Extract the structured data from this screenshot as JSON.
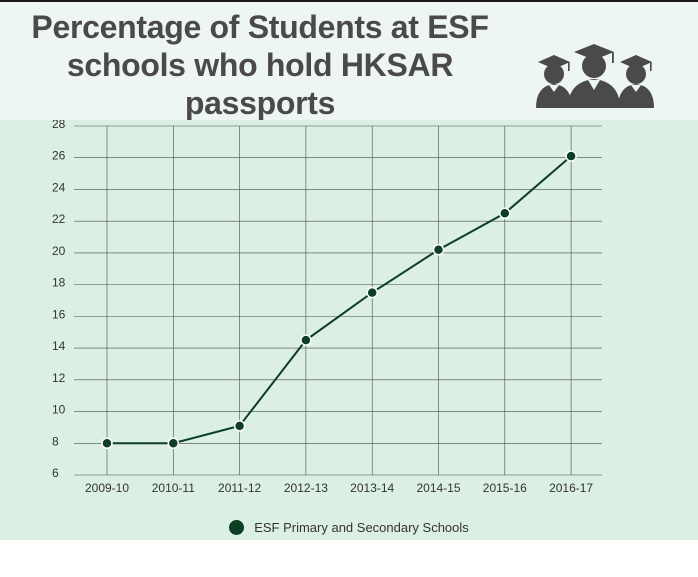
{
  "title": "Percentage of Students at ESF schools who hold HKSAR passports",
  "icons": {
    "graduates": "graduates-group-icon"
  },
  "colors": {
    "header_bg": "#eef6f1",
    "chart_bg": "#dcefe5",
    "grid": "#4a4a4a",
    "series": "#0d3f24",
    "point_stroke": "#ffffff"
  },
  "chart_data": {
    "type": "line",
    "title": "Percentage of Students at ESF schools who hold HKSAR passports",
    "xlabel": "",
    "ylabel": "",
    "categories": [
      "2009-10",
      "2010-11",
      "2011-12",
      "2012-13",
      "2013-14",
      "2014-15",
      "2015-16",
      "2016-17"
    ],
    "series": [
      {
        "name": "ESF Primary and Secondary Schools",
        "values": [
          8.0,
          8.0,
          9.1,
          14.5,
          17.5,
          20.2,
          22.5,
          26.1
        ]
      }
    ],
    "yticks": [
      6,
      8,
      10,
      12,
      14,
      16,
      18,
      20,
      22,
      24,
      26,
      28
    ],
    "ylim": [
      6,
      28
    ],
    "grid": true,
    "legend": "bottom"
  }
}
